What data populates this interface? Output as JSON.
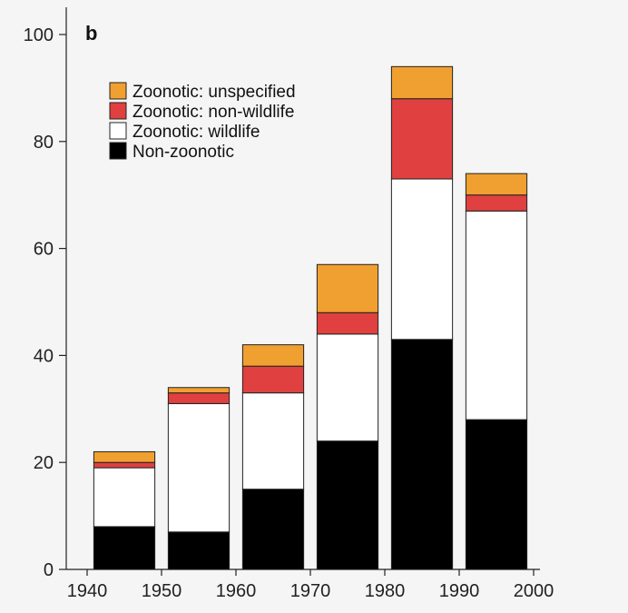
{
  "panel_label": "b",
  "chart_data": {
    "type": "bar",
    "stacked": true,
    "categories": [
      "1940-1950",
      "1950-1960",
      "1960-1970",
      "1970-1980",
      "1980-1990",
      "1990-2000"
    ],
    "x_ticks": [
      "1940",
      "1950",
      "1960",
      "1970",
      "1980",
      "1990",
      "2000"
    ],
    "y_ticks": [
      "0",
      "20",
      "40",
      "60",
      "80",
      "100"
    ],
    "ylim": [
      0,
      100
    ],
    "xlim": [
      1940,
      2000
    ],
    "series": [
      {
        "name": "Non-zoonotic",
        "color": "#000000",
        "values": [
          8,
          7,
          15,
          24,
          43,
          28
        ]
      },
      {
        "name": "Zoonotic: wildlife",
        "color": "#ffffff",
        "values": [
          11,
          24,
          18,
          20,
          30,
          39
        ]
      },
      {
        "name": "Zoonotic: non-wildlife",
        "color": "#e04040",
        "values": [
          1,
          2,
          5,
          4,
          15,
          3
        ]
      },
      {
        "name": "Zoonotic: unspecified",
        "color": "#f0a030",
        "values": [
          2,
          1,
          4,
          9,
          6,
          4
        ]
      }
    ],
    "legend_order": [
      "Zoonotic: unspecified",
      "Zoonotic: non-wildlife",
      "Zoonotic: wildlife",
      "Non-zoonotic"
    ],
    "legend_position": "top-left",
    "grid": false,
    "title": "",
    "xlabel": "",
    "ylabel": ""
  }
}
